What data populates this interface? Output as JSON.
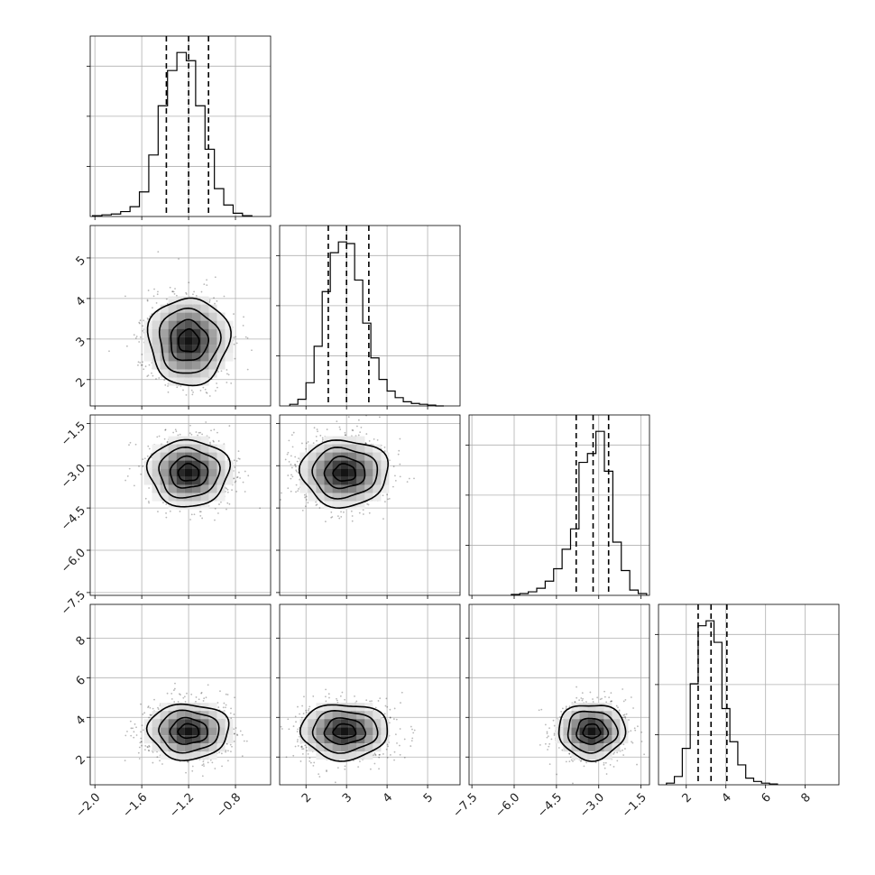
{
  "chart_data": {
    "type": "corner",
    "parameters": [
      {
        "ticks": [
          -2.0,
          -1.6,
          -1.2,
          -0.8
        ],
        "tick_labels": [
          "−2.0",
          "−1.6",
          "−1.2",
          "−0.8"
        ],
        "range": [
          -2.04,
          -0.5
        ],
        "median": -1.2,
        "std": 0.16,
        "q16": -1.39,
        "q50": -1.2,
        "q84": -1.03
      },
      {
        "ticks": [
          2,
          3,
          4,
          5
        ],
        "tick_labels": [
          "2",
          "3",
          "4",
          "5"
        ],
        "range": [
          1.35,
          5.8
        ],
        "median": 2.95,
        "std": 0.5,
        "q16": 2.55,
        "q50": 3.0,
        "q84": 3.55
      },
      {
        "ticks": [
          -7.5,
          -6.0,
          -4.5,
          -3.0,
          -1.5
        ],
        "tick_labels": [
          "−7.5",
          "−6.0",
          "−4.5",
          "−3.0",
          "−1.5"
        ],
        "range": [
          -7.6,
          -1.2
        ],
        "median": -3.25,
        "std": 0.55,
        "q16": -3.8,
        "q50": -3.2,
        "q84": -2.65
      },
      {
        "ticks": [
          2,
          4,
          6,
          8
        ],
        "tick_labels": [
          "2",
          "4",
          "6",
          "8"
        ],
        "range": [
          0.6,
          9.7
        ],
        "median": 3.3,
        "std": 0.65,
        "q16": 2.6,
        "q50": 3.25,
        "q84": 4.05
      }
    ],
    "histograms": [
      {
        "param": 0,
        "edges": [
          -2.02,
          -1.94,
          -1.86,
          -1.78,
          -1.7,
          -1.62,
          -1.54,
          -1.46,
          -1.38,
          -1.3,
          -1.22,
          -1.14,
          -1.06,
          -0.98,
          -0.9,
          -0.82,
          -0.74,
          -0.66
        ],
        "counts": [
          1,
          2,
          3,
          6,
          12,
          30,
          75,
          135,
          178,
          200,
          190,
          135,
          82,
          34,
          14,
          4,
          1
        ]
      },
      {
        "param": 1,
        "edges": [
          1.6,
          1.8,
          2.0,
          2.2,
          2.4,
          2.6,
          2.8,
          3.0,
          3.2,
          3.4,
          3.6,
          3.8,
          4.0,
          4.2,
          4.4,
          4.6,
          4.8,
          5.0,
          5.2,
          5.4
        ],
        "counts": [
          2,
          8,
          28,
          72,
          138,
          185,
          198,
          196,
          152,
          100,
          58,
          32,
          18,
          10,
          5,
          3,
          2,
          1,
          0
        ]
      },
      {
        "param": 2,
        "edges": [
          -6.1,
          -5.8,
          -5.5,
          -5.2,
          -4.9,
          -4.6,
          -4.3,
          -4.0,
          -3.7,
          -3.4,
          -3.1,
          -2.8,
          -2.5,
          -2.2,
          -1.9,
          -1.6,
          -1.3
        ],
        "counts": [
          1,
          2,
          4,
          8,
          16,
          30,
          52,
          75,
          150,
          160,
          185,
          140,
          60,
          28,
          6,
          2
        ]
      },
      {
        "param": 3,
        "edges": [
          1.0,
          1.4,
          1.8,
          2.2,
          2.6,
          3.0,
          3.4,
          3.8,
          4.2,
          4.6,
          5.0,
          5.4,
          5.8,
          6.2,
          6.6
        ],
        "counts": [
          2,
          10,
          44,
          122,
          192,
          198,
          172,
          92,
          52,
          24,
          8,
          4,
          2,
          1
        ]
      }
    ],
    "scatter_2d": [
      {
        "x_param": 0,
        "y_param": 1
      },
      {
        "x_param": 0,
        "y_param": 2
      },
      {
        "x_param": 1,
        "y_param": 2
      },
      {
        "x_param": 0,
        "y_param": 3
      },
      {
        "x_param": 1,
        "y_param": 3
      },
      {
        "x_param": 2,
        "y_param": 3
      }
    ],
    "contour_levels_sigma": [
      0.5,
      1.0,
      1.5,
      2.0
    ],
    "grid": true,
    "colors": {
      "ink": "#000000",
      "grid": "#b0b0b0",
      "points": "#808080"
    }
  }
}
